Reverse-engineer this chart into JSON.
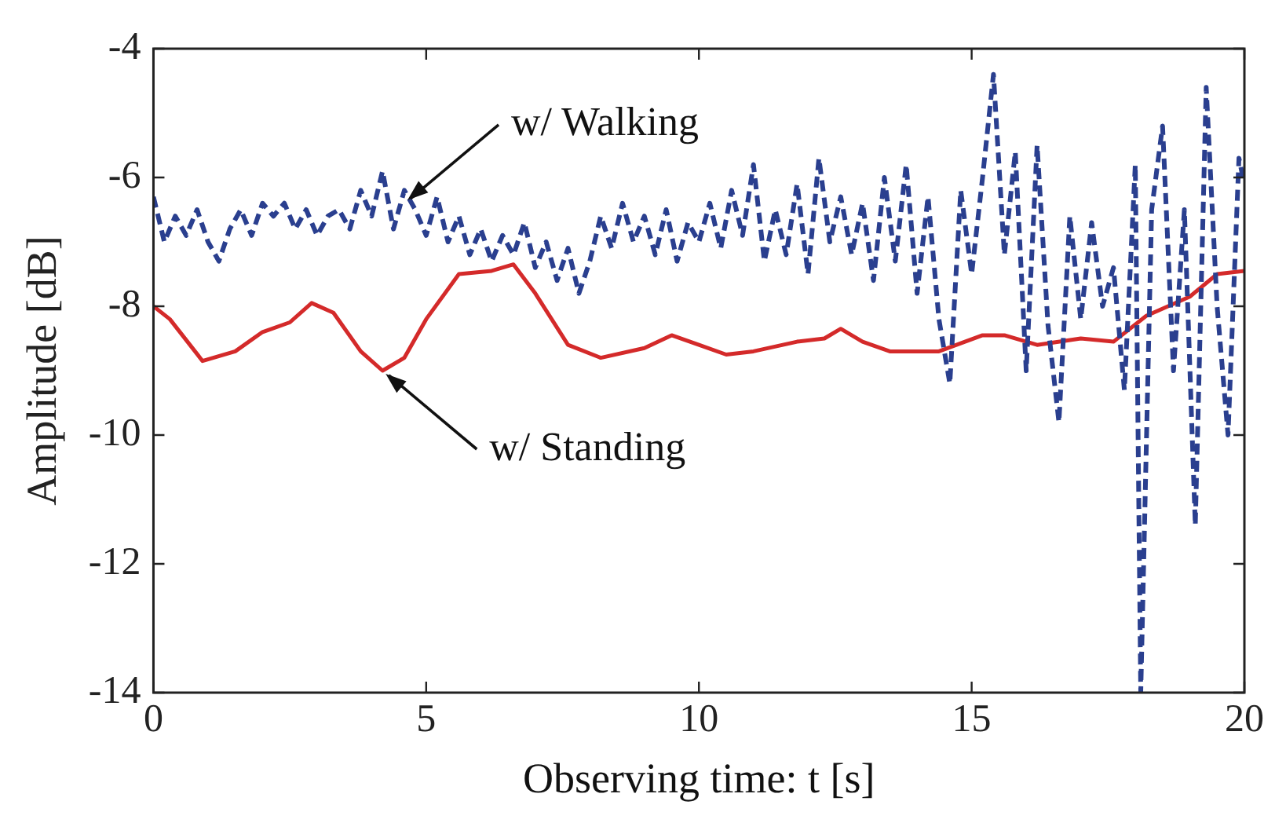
{
  "chart_data": {
    "type": "line",
    "xlabel": "Observing time: t [s]",
    "ylabel": "Amplitude [dB]",
    "xlim": [
      0,
      20
    ],
    "xticks": [
      0,
      5,
      10,
      15,
      20
    ],
    "ylim": [
      -14,
      -4
    ],
    "yticks": [
      -14,
      -12,
      -10,
      -8,
      -6,
      -4
    ],
    "grid": false,
    "legend": false,
    "marker": "none",
    "series": [
      {
        "color": "#2a3f8f",
        "line_style": "dashed",
        "x": [
          0,
          0.2,
          0.4,
          0.6,
          0.8,
          1.0,
          1.2,
          1.4,
          1.6,
          1.8,
          2.0,
          2.2,
          2.4,
          2.6,
          2.8,
          3.0,
          3.2,
          3.4,
          3.6,
          3.8,
          4.0,
          4.2,
          4.4,
          4.6,
          4.8,
          5.0,
          5.2,
          5.4,
          5.6,
          5.8,
          6.0,
          6.2,
          6.4,
          6.6,
          6.8,
          7.0,
          7.2,
          7.4,
          7.6,
          7.8,
          8.0,
          8.2,
          8.4,
          8.6,
          8.8,
          9.0,
          9.2,
          9.4,
          9.6,
          9.8,
          10.0,
          10.2,
          10.4,
          10.6,
          10.8,
          11.0,
          11.2,
          11.4,
          11.6,
          11.8,
          12.0,
          12.2,
          12.4,
          12.6,
          12.8,
          13.0,
          13.2,
          13.4,
          13.6,
          13.8,
          14.0,
          14.2,
          14.4,
          14.6,
          14.8,
          15.0,
          15.2,
          15.4,
          15.6,
          15.8,
          16.0,
          16.2,
          16.4,
          16.6,
          16.8,
          17.0,
          17.2,
          17.4,
          17.6,
          17.8,
          18.0,
          18.1,
          18.3,
          18.5,
          18.7,
          18.9,
          19.1,
          19.3,
          19.5,
          19.7,
          19.9,
          20.0
        ],
        "values": [
          -6.3,
          -7.0,
          -6.6,
          -6.9,
          -6.5,
          -7.0,
          -7.3,
          -6.8,
          -6.5,
          -6.9,
          -6.4,
          -6.6,
          -6.4,
          -6.8,
          -6.5,
          -6.9,
          -6.6,
          -6.5,
          -6.8,
          -6.2,
          -6.6,
          -5.9,
          -6.8,
          -6.2,
          -6.5,
          -6.9,
          -6.3,
          -7.0,
          -6.6,
          -7.2,
          -6.8,
          -7.3,
          -6.9,
          -7.2,
          -6.7,
          -7.4,
          -7.0,
          -7.6,
          -7.1,
          -7.8,
          -7.3,
          -6.6,
          -7.1,
          -6.4,
          -7.0,
          -6.6,
          -7.2,
          -6.5,
          -7.3,
          -6.7,
          -7.0,
          -6.4,
          -7.1,
          -6.2,
          -6.9,
          -5.8,
          -7.3,
          -6.5,
          -7.2,
          -6.1,
          -7.5,
          -5.7,
          -7.0,
          -6.3,
          -7.2,
          -6.4,
          -7.6,
          -6.0,
          -7.3,
          -5.8,
          -7.8,
          -6.3,
          -8.2,
          -9.2,
          -6.2,
          -7.5,
          -6.0,
          -4.4,
          -7.2,
          -5.6,
          -9.0,
          -5.5,
          -8.3,
          -9.8,
          -6.6,
          -8.2,
          -6.7,
          -8.0,
          -7.4,
          -9.3,
          -5.8,
          -14.0,
          -6.5,
          -5.2,
          -9.0,
          -6.5,
          -11.4,
          -4.6,
          -8.0,
          -10.0,
          -5.7,
          -6.1
        ]
      },
      {
        "color": "#d42a2a",
        "line_style": "solid",
        "x": [
          0,
          0.3,
          0.9,
          1.5,
          2.0,
          2.5,
          2.9,
          3.3,
          3.8,
          4.2,
          4.6,
          5.0,
          5.6,
          6.2,
          6.6,
          7.0,
          7.6,
          8.2,
          9.0,
          9.5,
          10.0,
          10.5,
          11.0,
          11.8,
          12.3,
          12.6,
          13.0,
          13.5,
          14.4,
          15.2,
          15.6,
          16.2,
          17.0,
          17.6,
          18.2,
          19.0,
          19.5,
          20.0
        ],
        "values": [
          -8.0,
          -8.2,
          -8.85,
          -8.7,
          -8.4,
          -8.25,
          -7.95,
          -8.1,
          -8.7,
          -9.0,
          -8.8,
          -8.2,
          -7.5,
          -7.45,
          -7.35,
          -7.8,
          -8.6,
          -8.8,
          -8.65,
          -8.45,
          -8.6,
          -8.75,
          -8.7,
          -8.55,
          -8.5,
          -8.35,
          -8.55,
          -8.7,
          -8.7,
          -8.45,
          -8.45,
          -8.6,
          -8.5,
          -8.55,
          -8.15,
          -7.85,
          -7.5,
          -7.45
        ]
      }
    ],
    "annotations": [
      {
        "text": "w/ Walking",
        "x": 4.6,
        "y": -6.4
      },
      {
        "text": "w/ Standing",
        "x": 4.2,
        "y": -9.0
      }
    ]
  }
}
